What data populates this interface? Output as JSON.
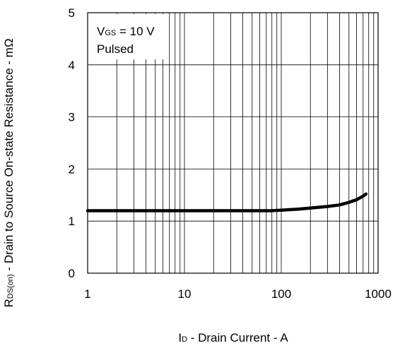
{
  "chart_data": {
    "type": "line",
    "x_scale": "log",
    "xlim": [
      1,
      1000
    ],
    "ylim": [
      0,
      5
    ],
    "x_ticks": [
      "1",
      "10",
      "100",
      "1000"
    ],
    "y_ticks": [
      "0",
      "1",
      "2",
      "3",
      "4",
      "5"
    ],
    "xlabel": {
      "main": "I",
      "sub": "D",
      "rest": " - Drain Current - A"
    },
    "ylabel": {
      "main": "R",
      "sub": "DS(on)",
      "rest": " - Drain to Source On-state Resistance - mΩ"
    },
    "annotation": {
      "line1_main": "V",
      "line1_sub": "GS",
      "line1_rest": " = 10 V",
      "line2": "Pulsed"
    },
    "grid": true,
    "line_color": "#000000",
    "series": [
      {
        "x": [
          1,
          2,
          5,
          10,
          20,
          50,
          80,
          100,
          150,
          200,
          300,
          400,
          500,
          600,
          700,
          750
        ],
        "values": [
          1.2,
          1.2,
          1.2,
          1.2,
          1.2,
          1.2,
          1.2,
          1.21,
          1.23,
          1.25,
          1.28,
          1.31,
          1.36,
          1.41,
          1.48,
          1.52
        ]
      }
    ]
  }
}
